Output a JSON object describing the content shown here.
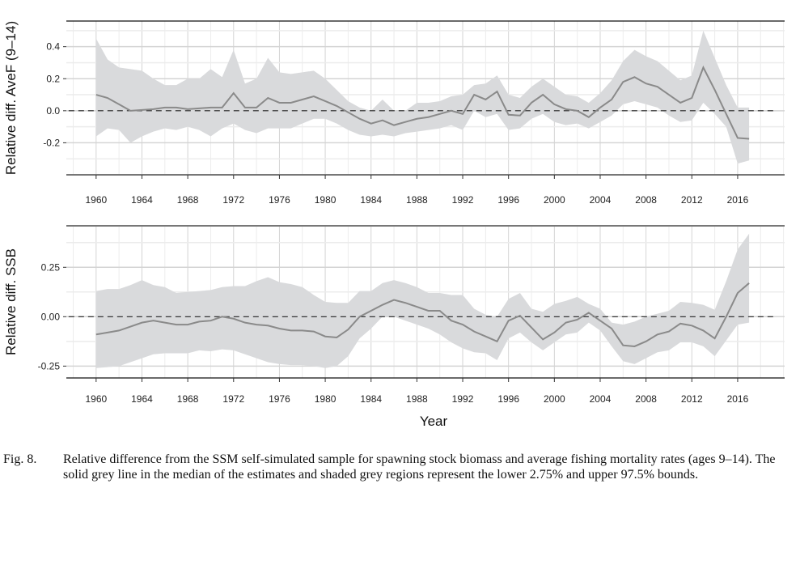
{
  "chart_data": [
    {
      "type": "line",
      "ylabel": "Relative diff. AveF (9–14)",
      "xlabel": "",
      "ylim": [
        -0.4,
        0.56
      ],
      "xlim": [
        1957.4,
        2020.1
      ],
      "yticks": [
        -0.2,
        0.0,
        0.2,
        0.4
      ],
      "ytick_labels": [
        "-0.2",
        "0.0",
        "0.2",
        "0.4"
      ],
      "xticks": [
        1960,
        1964,
        1968,
        1972,
        1976,
        1980,
        1984,
        1988,
        1992,
        1996,
        2000,
        2004,
        2008,
        2012,
        2016
      ],
      "grid": true,
      "reference_line": 0,
      "x_start": 1960,
      "series": [
        {
          "name": "median",
          "values": [
            0.1,
            0.08,
            0.04,
            0.0,
            0.005,
            0.01,
            0.02,
            0.02,
            0.01,
            0.015,
            0.02,
            0.02,
            0.11,
            0.02,
            0.02,
            0.08,
            0.05,
            0.05,
            0.07,
            0.09,
            0.06,
            0.03,
            -0.01,
            -0.05,
            -0.08,
            -0.06,
            -0.09,
            -0.07,
            -0.05,
            -0.04,
            -0.02,
            0.0,
            -0.02,
            0.1,
            0.07,
            0.12,
            -0.025,
            -0.03,
            0.05,
            0.1,
            0.04,
            0.01,
            0.0,
            -0.04,
            0.02,
            0.07,
            0.18,
            0.21,
            0.17,
            0.15,
            0.1,
            0.05,
            0.08,
            0.27,
            0.13,
            -0.02,
            -0.17,
            -0.175
          ]
        },
        {
          "name": "upper 97.5%",
          "values": [
            0.45,
            0.32,
            0.27,
            0.26,
            0.25,
            0.2,
            0.16,
            0.16,
            0.2,
            0.2,
            0.26,
            0.21,
            0.38,
            0.17,
            0.2,
            0.33,
            0.24,
            0.23,
            0.24,
            0.25,
            0.2,
            0.13,
            0.06,
            0.02,
            0.0,
            0.07,
            0.0,
            0.0,
            0.05,
            0.05,
            0.06,
            0.09,
            0.1,
            0.16,
            0.17,
            0.22,
            0.1,
            0.08,
            0.15,
            0.2,
            0.15,
            0.1,
            0.09,
            0.05,
            0.11,
            0.19,
            0.31,
            0.38,
            0.34,
            0.31,
            0.25,
            0.19,
            0.22,
            0.5,
            0.33,
            0.16,
            0.02,
            0.02
          ]
        },
        {
          "name": "lower 2.75%",
          "values": [
            -0.16,
            -0.11,
            -0.12,
            -0.2,
            -0.16,
            -0.13,
            -0.11,
            -0.12,
            -0.1,
            -0.12,
            -0.16,
            -0.11,
            -0.08,
            -0.12,
            -0.14,
            -0.11,
            -0.11,
            -0.11,
            -0.08,
            -0.05,
            -0.05,
            -0.08,
            -0.12,
            -0.15,
            -0.16,
            -0.15,
            -0.16,
            -0.14,
            -0.13,
            -0.12,
            -0.11,
            -0.09,
            -0.12,
            0.0,
            -0.04,
            -0.02,
            -0.12,
            -0.11,
            -0.05,
            -0.02,
            -0.07,
            -0.09,
            -0.08,
            -0.11,
            -0.07,
            -0.03,
            0.04,
            0.06,
            0.04,
            0.02,
            -0.03,
            -0.07,
            -0.06,
            0.05,
            -0.02,
            -0.1,
            -0.33,
            -0.31
          ]
        }
      ]
    },
    {
      "type": "line",
      "ylabel": "Relative diff. SSB",
      "xlabel": "Year",
      "ylim": [
        -0.31,
        0.46
      ],
      "xlim": [
        1957.4,
        2020.1
      ],
      "yticks": [
        -0.25,
        0.0,
        0.25
      ],
      "ytick_labels": [
        "-0.25",
        "0.00",
        "0.25"
      ],
      "xticks": [
        1960,
        1964,
        1968,
        1972,
        1976,
        1980,
        1984,
        1988,
        1992,
        1996,
        2000,
        2004,
        2008,
        2012,
        2016
      ],
      "grid": true,
      "reference_line": 0,
      "x_start": 1960,
      "series": [
        {
          "name": "median",
          "values": [
            -0.09,
            -0.08,
            -0.07,
            -0.05,
            -0.03,
            -0.02,
            -0.03,
            -0.04,
            -0.04,
            -0.025,
            -0.02,
            0.0,
            -0.01,
            -0.03,
            -0.04,
            -0.045,
            -0.06,
            -0.07,
            -0.07,
            -0.075,
            -0.1,
            -0.105,
            -0.065,
            0.0,
            0.03,
            0.06,
            0.085,
            0.07,
            0.05,
            0.03,
            0.03,
            -0.02,
            -0.04,
            -0.075,
            -0.1,
            -0.125,
            -0.02,
            0.005,
            -0.055,
            -0.115,
            -0.08,
            -0.03,
            -0.015,
            0.02,
            -0.02,
            -0.06,
            -0.145,
            -0.15,
            -0.125,
            -0.09,
            -0.075,
            -0.035,
            -0.045,
            -0.07,
            -0.11,
            0.0,
            0.12,
            0.17
          ]
        },
        {
          "name": "upper 97.5%",
          "values": [
            0.13,
            0.14,
            0.14,
            0.16,
            0.185,
            0.16,
            0.15,
            0.12,
            0.125,
            0.13,
            0.135,
            0.15,
            0.155,
            0.155,
            0.18,
            0.2,
            0.175,
            0.165,
            0.15,
            0.11,
            0.075,
            0.07,
            0.07,
            0.13,
            0.13,
            0.17,
            0.185,
            0.17,
            0.15,
            0.12,
            0.12,
            0.11,
            0.11,
            0.04,
            0.01,
            0.0,
            0.09,
            0.12,
            0.04,
            0.025,
            0.065,
            0.08,
            0.1,
            0.065,
            0.04,
            -0.03,
            -0.04,
            -0.025,
            0.0,
            0.015,
            0.03,
            0.075,
            0.07,
            0.06,
            0.035,
            0.18,
            0.34,
            0.42
          ]
        },
        {
          "name": "lower 2.75%",
          "values": [
            -0.26,
            -0.255,
            -0.25,
            -0.23,
            -0.21,
            -0.19,
            -0.185,
            -0.185,
            -0.185,
            -0.17,
            -0.175,
            -0.165,
            -0.17,
            -0.19,
            -0.21,
            -0.23,
            -0.24,
            -0.245,
            -0.245,
            -0.25,
            -0.26,
            -0.25,
            -0.2,
            -0.11,
            -0.06,
            0.0,
            0.0,
            -0.02,
            -0.04,
            -0.06,
            -0.09,
            -0.13,
            -0.16,
            -0.18,
            -0.185,
            -0.22,
            -0.11,
            -0.08,
            -0.13,
            -0.17,
            -0.13,
            -0.09,
            -0.08,
            -0.03,
            -0.07,
            -0.15,
            -0.225,
            -0.24,
            -0.21,
            -0.18,
            -0.17,
            -0.13,
            -0.13,
            -0.15,
            -0.2,
            -0.12,
            -0.04,
            -0.03
          ]
        }
      ]
    }
  ],
  "colors": {
    "band": "#d9dadc",
    "line": "#8a8a8a",
    "grid_major": "#d4d4d4",
    "grid_minor": "#ececec",
    "ref": "#222222"
  },
  "caption": {
    "label": "Fig. 8.",
    "text": "Relative difference from the SSM self-simulated sample for spawning stock biomass and average fishing mortality rates (ages 9–14). The solid grey line in the median of the estimates and shaded grey regions represent the lower 2.75% and upper 97.5% bounds."
  }
}
